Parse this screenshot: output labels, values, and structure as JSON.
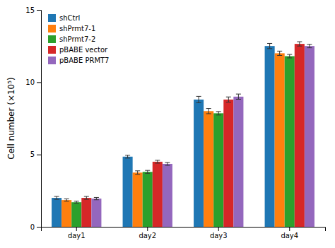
{
  "chart_data": {
    "type": "bar",
    "ylabel": "Cell number (×10⁵)",
    "categories": [
      "day1",
      "day2",
      "day3",
      "day4"
    ],
    "series": [
      {
        "name": "shCtrl",
        "values": [
          2.0,
          4.85,
          8.8,
          12.5
        ],
        "errors": [
          0.1,
          0.1,
          0.22,
          0.18
        ]
      },
      {
        "name": "shPrmt7-1",
        "values": [
          1.85,
          3.75,
          8.0,
          12.0
        ],
        "errors": [
          0.08,
          0.12,
          0.18,
          0.15
        ]
      },
      {
        "name": "shPrmt7-2",
        "values": [
          1.7,
          3.8,
          7.85,
          11.8
        ],
        "errors": [
          0.07,
          0.1,
          0.12,
          0.12
        ]
      },
      {
        "name": "pBABE vector",
        "values": [
          2.0,
          4.5,
          8.8,
          12.65
        ],
        "errors": [
          0.1,
          0.1,
          0.18,
          0.15
        ]
      },
      {
        "name": "pBABE PRMT7",
        "values": [
          1.95,
          4.35,
          9.0,
          12.5
        ],
        "errors": [
          0.08,
          0.1,
          0.18,
          0.12
        ]
      }
    ],
    "ylim": [
      0,
      15
    ],
    "yticks": [
      0,
      5,
      10,
      15
    ],
    "legend": "upper left"
  }
}
